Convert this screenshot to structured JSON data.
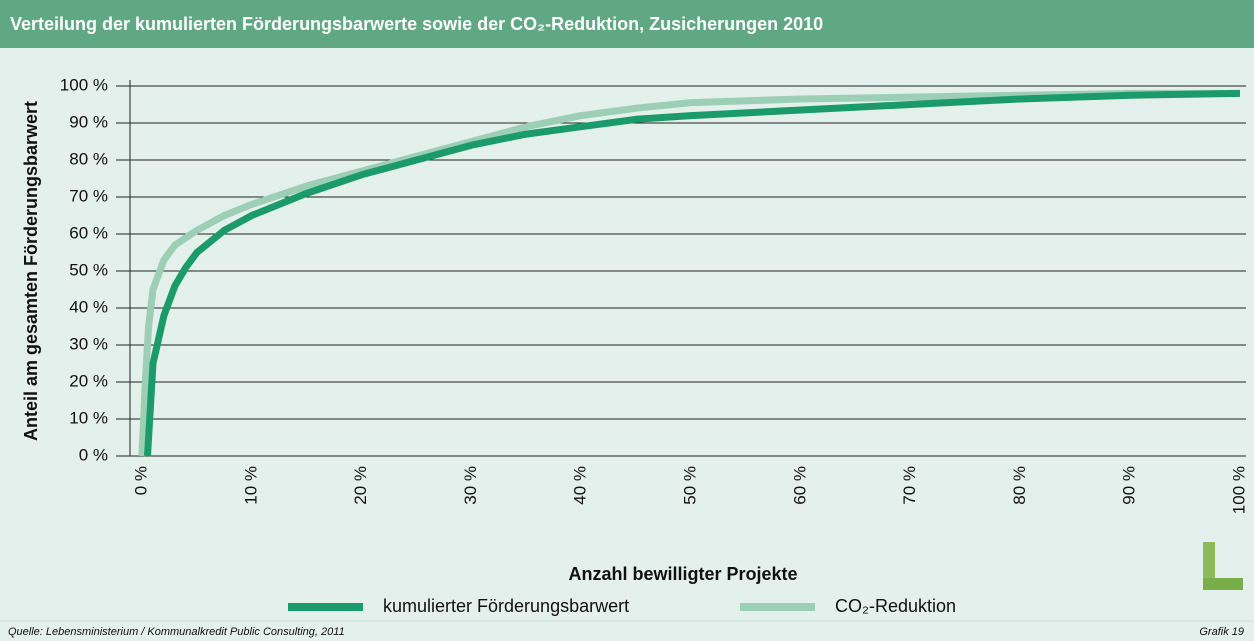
{
  "chart_data": {
    "type": "line",
    "title": "Verteilung der kumulierten Förderungsbarwerte sowie der CO₂-Reduktion, Zusicherungen 2010",
    "xlabel": "Anzahl bewilligter Projekte",
    "ylabel": "Anteil am gesamten Förderungsbarwert",
    "source": "Quelle: Lebensministerium / Kommunalkredit Public Consulting, 2011",
    "figure_label": "Grafik 19",
    "xlim": [
      0,
      100
    ],
    "ylim": [
      0,
      100
    ],
    "grid": true,
    "legend": "bottom",
    "xticks": [
      {
        "value": 0,
        "label": "0 %"
      },
      {
        "value": 10,
        "label": "10 %"
      },
      {
        "value": 20,
        "label": "20 %"
      },
      {
        "value": 30,
        "label": "30 %"
      },
      {
        "value": 40,
        "label": "40 %"
      },
      {
        "value": 50,
        "label": "50 %"
      },
      {
        "value": 60,
        "label": "60 %"
      },
      {
        "value": 70,
        "label": "70 %"
      },
      {
        "value": 80,
        "label": "80 %"
      },
      {
        "value": 90,
        "label": "90 %"
      },
      {
        "value": 100,
        "label": "100 %"
      }
    ],
    "yticks": [
      {
        "value": 0,
        "label": "0 %"
      },
      {
        "value": 10,
        "label": "10 %"
      },
      {
        "value": 20,
        "label": "20 %"
      },
      {
        "value": 30,
        "label": "30 %"
      },
      {
        "value": 40,
        "label": "40 %"
      },
      {
        "value": 50,
        "label": "50 %"
      },
      {
        "value": 60,
        "label": "60 %"
      },
      {
        "value": 70,
        "label": "70 %"
      },
      {
        "value": 80,
        "label": "80 %"
      },
      {
        "value": 90,
        "label": "90 %"
      },
      {
        "value": 100,
        "label": "100 %"
      }
    ],
    "series": [
      {
        "name": "kumulierter Förderungsbarwert",
        "color": "#1b9a6c",
        "x": [
          0.5,
          1,
          2,
          3,
          4,
          5,
          7.5,
          10,
          15,
          20,
          25,
          30,
          35,
          40,
          45,
          50,
          60,
          70,
          80,
          90,
          100
        ],
        "values": [
          0,
          25,
          38,
          46,
          51,
          55,
          61,
          65,
          71,
          76,
          80,
          84,
          87,
          89,
          91,
          92,
          93.5,
          95,
          96.5,
          97.5,
          98
        ]
      },
      {
        "name": "CO₂-Reduktion",
        "color": "#9dcfb6",
        "x": [
          0,
          0.3,
          0.6,
          1,
          2,
          3,
          5,
          7.5,
          10,
          15,
          20,
          25,
          30,
          35,
          40,
          45,
          50,
          60,
          70,
          80,
          90,
          100
        ],
        "values": [
          0,
          20,
          35,
          45,
          53,
          57,
          61,
          65,
          68,
          73,
          77,
          81,
          85,
          89,
          92,
          94,
          95.5,
          96.5,
          97,
          97.5,
          98,
          98
        ]
      }
    ]
  }
}
